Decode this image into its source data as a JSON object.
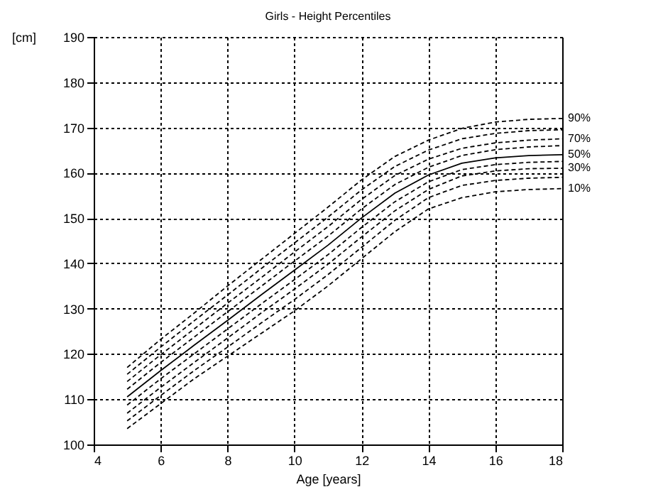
{
  "chart_data": {
    "type": "line",
    "title": "Girls - Height Percentiles",
    "xlabel": "Age [years]",
    "ylabel": "[cm]",
    "x": [
      5,
      6,
      7,
      8,
      9,
      10,
      11,
      12,
      13,
      14,
      15,
      16,
      17,
      18
    ],
    "xlim": [
      4,
      18
    ],
    "xticks": [
      4,
      6,
      8,
      10,
      12,
      14,
      16,
      18
    ],
    "ylim": [
      100,
      190
    ],
    "yticks": [
      100,
      110,
      120,
      130,
      140,
      150,
      160,
      170,
      180,
      190
    ],
    "grid": true,
    "marker": "none",
    "series": [
      {
        "name": "90%",
        "color": "#000000",
        "line_style": "dashed",
        "values": [
          117,
          123.2,
          129,
          135,
          140.8,
          146.6,
          152.4,
          158.4,
          163.6,
          167.2,
          169.8,
          171.2,
          171.8,
          172
        ]
      },
      {
        "color": "#000000",
        "line_style": "dashed",
        "values": [
          115.5,
          121.5,
          127.3,
          133,
          138.8,
          144.5,
          150.2,
          156.2,
          161.4,
          165,
          167.5,
          168.7,
          169.3,
          169.5
        ]
      },
      {
        "name": "70%",
        "color": "#000000",
        "line_style": "dashed",
        "values": [
          113.9,
          119.8,
          125.5,
          131.2,
          136.8,
          142.5,
          148.1,
          154.1,
          159.4,
          163,
          165.4,
          166.6,
          167.2,
          167.5
        ]
      },
      {
        "color": "#000000",
        "line_style": "dashed",
        "values": [
          112.2,
          118.1,
          123.7,
          129.3,
          134.9,
          140.5,
          146,
          152,
          157.4,
          161.2,
          163.8,
          165.1,
          165.7,
          166
        ]
      },
      {
        "name": "50%",
        "color": "#000000",
        "line_style": "solid",
        "values": [
          110.5,
          116.3,
          121.9,
          127.4,
          133,
          138.5,
          144,
          150,
          155.5,
          159.5,
          162.1,
          163.3,
          163.8,
          164
        ]
      },
      {
        "color": "#000000",
        "line_style": "dashed",
        "values": [
          108.7,
          114.5,
          120,
          125.5,
          131,
          136.4,
          141.9,
          147.9,
          153.6,
          158,
          160.7,
          161.8,
          162.3,
          162.5
        ]
      },
      {
        "name": "30%",
        "color": "#000000",
        "line_style": "dashed",
        "values": [
          106.9,
          112.6,
          118.1,
          123.5,
          129,
          134.3,
          139.8,
          145.8,
          151.6,
          156.3,
          159.3,
          160.4,
          160.9,
          161
        ]
      },
      {
        "color": "#000000",
        "line_style": "dashed",
        "values": [
          105.2,
          110.8,
          116.3,
          121.5,
          126.8,
          132,
          137.5,
          143.5,
          149.5,
          154.5,
          157.2,
          158.3,
          158.8,
          159
        ]
      },
      {
        "name": "10%",
        "color": "#000000",
        "line_style": "dashed",
        "values": [
          103.5,
          109,
          114.5,
          119.5,
          124.5,
          129.5,
          135,
          141,
          147,
          152,
          154.5,
          155.8,
          156.3,
          156.5
        ]
      }
    ]
  }
}
